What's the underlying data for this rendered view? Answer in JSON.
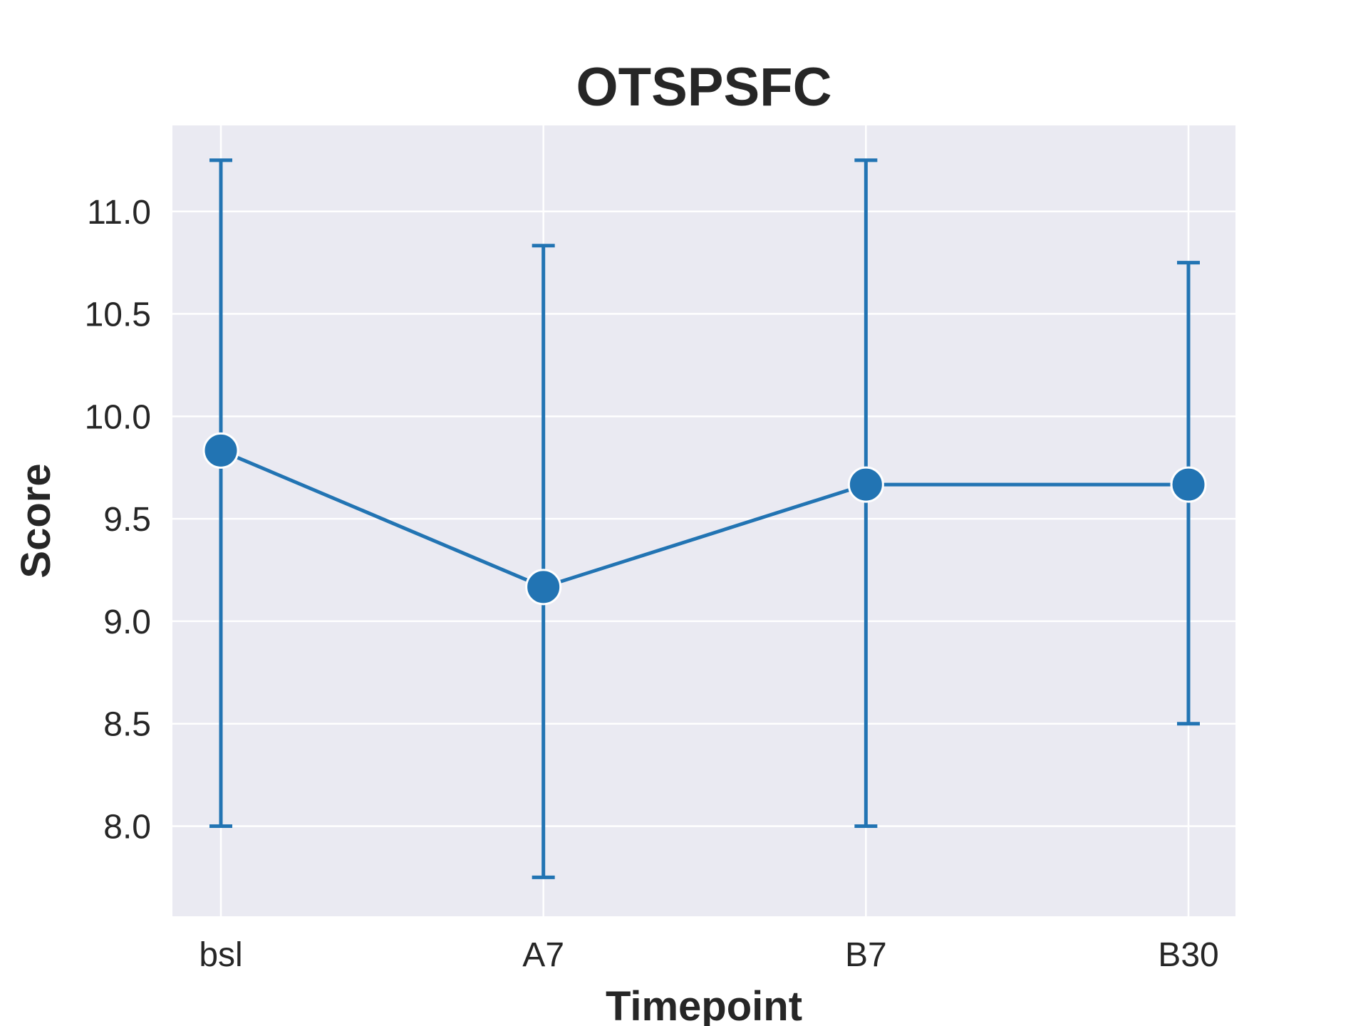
{
  "chart_data": {
    "type": "line",
    "title": "OTSPSFC",
    "xlabel": "Timepoint",
    "ylabel": "Score",
    "categories": [
      "bsl",
      "A7",
      "B7",
      "B30"
    ],
    "series": [
      {
        "values": [
          9.833,
          9.167,
          9.667,
          9.667
        ],
        "error_low": [
          8.0,
          7.75,
          8.0,
          8.5
        ],
        "error_high": [
          11.25,
          10.833,
          11.25,
          10.75
        ]
      }
    ],
    "ylim": [
      7.56,
      11.42
    ],
    "yticks": [
      8.0,
      8.5,
      9.0,
      9.5,
      10.0,
      10.5,
      11.0
    ],
    "ytick_labels": [
      "8.0",
      "8.5",
      "9.0",
      "9.5",
      "10.0",
      "10.5",
      "11.0"
    ],
    "grid": true,
    "colors": {
      "series": "#2274b3",
      "plot_bg": "#eaeaf2",
      "grid": "#ffffff",
      "text": "#262626"
    }
  }
}
